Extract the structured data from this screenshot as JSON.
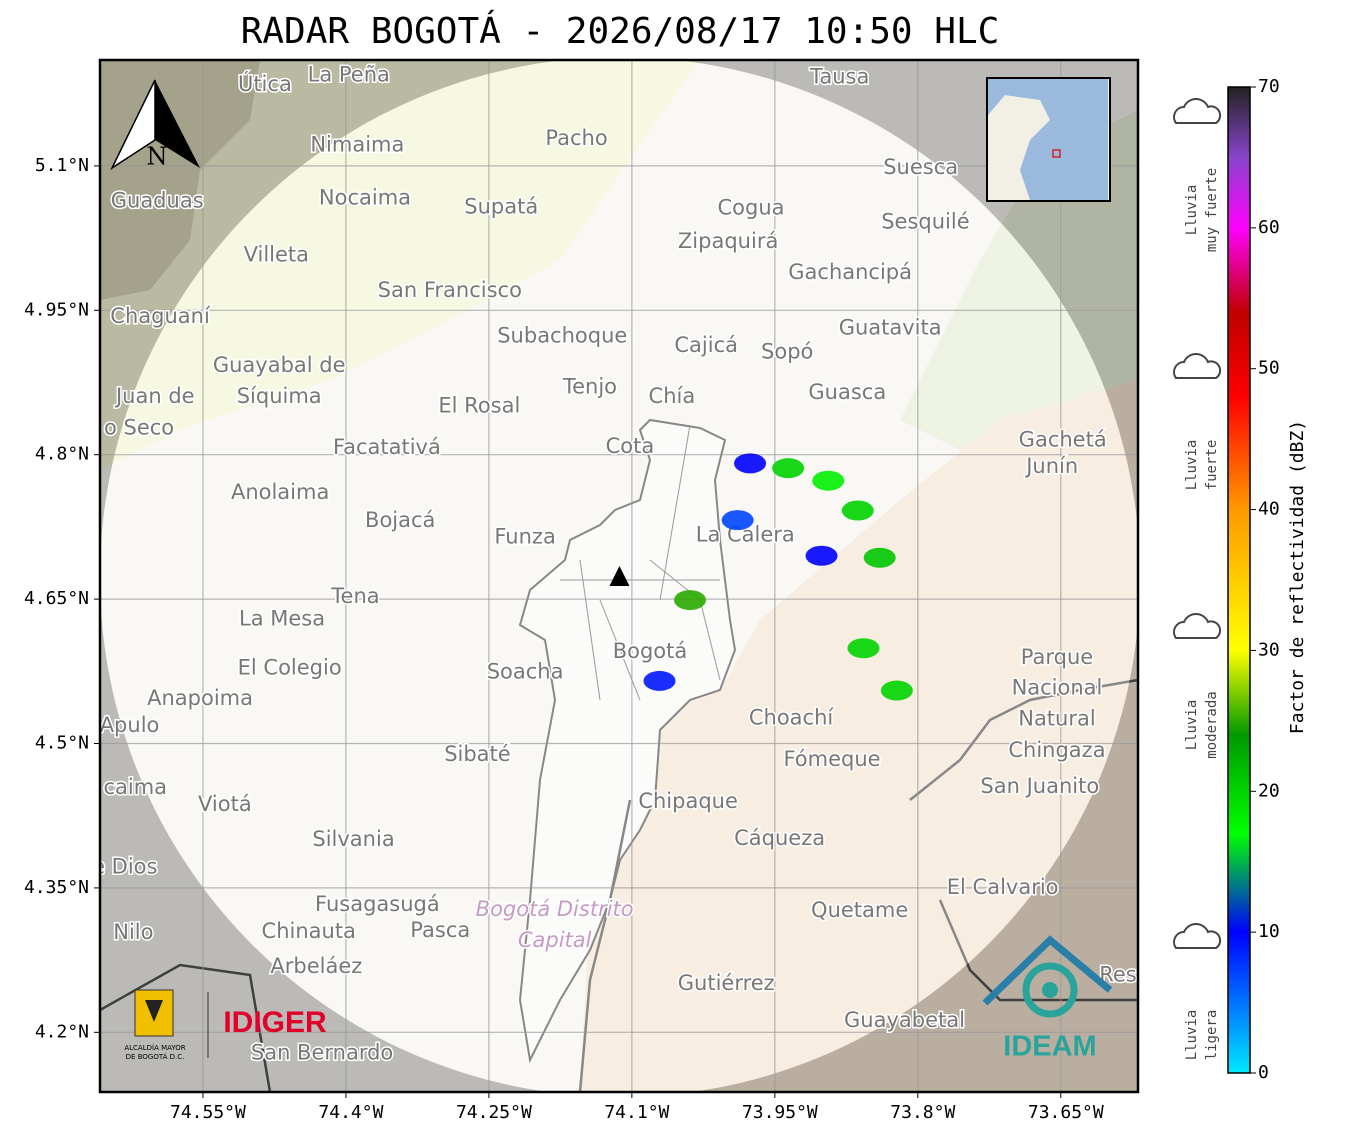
{
  "map": {
    "title": "RADAR BOGOTÁ - 2026/08/17 10:50 HLC",
    "xlim": [
      -74.658,
      -73.569
    ],
    "ylim": [
      4.138,
      5.21
    ],
    "xticks": [
      {
        "value": -74.55,
        "label": "74.55°W"
      },
      {
        "value": -74.4,
        "label": "74.4°W"
      },
      {
        "value": -74.25,
        "label": "74.25°W"
      },
      {
        "value": -74.1,
        "label": "74.1°W"
      },
      {
        "value": -73.95,
        "label": "73.95°W"
      },
      {
        "value": -73.8,
        "label": "73.8°W"
      },
      {
        "value": -73.65,
        "label": "73.65°W"
      }
    ],
    "yticks": [
      {
        "value": 5.1,
        "label": "5.1°N"
      },
      {
        "value": 4.95,
        "label": "4.95°N"
      },
      {
        "value": 4.8,
        "label": "4.8°N"
      },
      {
        "value": 4.65,
        "label": "4.65°N"
      },
      {
        "value": 4.5,
        "label": "4.5°N"
      },
      {
        "value": 4.35,
        "label": "4.35°N"
      },
      {
        "value": 4.2,
        "label": "4.2°N"
      }
    ],
    "grid": true,
    "north_label": "N",
    "radar_site": {
      "lon": -74.113,
      "lat": 4.673
    },
    "places": [
      {
        "name": "Útica",
        "lon": -74.485,
        "lat": 5.184
      },
      {
        "name": "La Peña",
        "lon": -74.397,
        "lat": 5.194
      },
      {
        "name": "Tausa",
        "lon": -73.882,
        "lat": 5.192
      },
      {
        "name": "Pacho",
        "lon": -74.158,
        "lat": 5.128
      },
      {
        "name": "Nimaima",
        "lon": -74.388,
        "lat": 5.121
      },
      {
        "name": "Guaduas",
        "lon": -74.598,
        "lat": 5.063
      },
      {
        "name": "Nocaima",
        "lon": -74.38,
        "lat": 5.066
      },
      {
        "name": "Supatá",
        "lon": -74.237,
        "lat": 5.057
      },
      {
        "name": "Cogua",
        "lon": -73.975,
        "lat": 5.056
      },
      {
        "name": "Suesca",
        "lon": -73.797,
        "lat": 5.098
      },
      {
        "name": "Zipaquirá",
        "lon": -73.999,
        "lat": 5.021
      },
      {
        "name": "Sesquilé",
        "lon": -73.792,
        "lat": 5.041
      },
      {
        "name": "Villeta",
        "lon": -74.473,
        "lat": 5.007
      },
      {
        "name": "Gachancipá",
        "lon": -73.871,
        "lat": 4.989
      },
      {
        "name": "San Francisco",
        "lon": -74.291,
        "lat": 4.97
      },
      {
        "name": "Chaguaní",
        "lon": -74.595,
        "lat": 4.943
      },
      {
        "name": "Guatavita",
        "lon": -73.829,
        "lat": 4.931
      },
      {
        "name": "Subachoque",
        "lon": -74.173,
        "lat": 4.923
      },
      {
        "name": "Cajicá",
        "lon": -74.022,
        "lat": 4.913
      },
      {
        "name": "Sopó",
        "lon": -73.937,
        "lat": 4.906
      },
      {
        "name": "Guayabal de",
        "lon": -74.47,
        "lat": 4.892
      },
      {
        "name": "Síquima",
        "lon": -74.47,
        "lat": 4.86
      },
      {
        "name": "Juan de",
        "lon": -74.6,
        "lat": 4.86
      },
      {
        "name": "o Seco",
        "lon": -74.617,
        "lat": 4.827
      },
      {
        "name": "Tenjo",
        "lon": -74.144,
        "lat": 4.87
      },
      {
        "name": "Chía",
        "lon": -74.058,
        "lat": 4.86
      },
      {
        "name": "Guasca",
        "lon": -73.874,
        "lat": 4.864
      },
      {
        "name": "El Rosal",
        "lon": -74.26,
        "lat": 4.85
      },
      {
        "name": "Facatativá",
        "lon": -74.357,
        "lat": 4.807
      },
      {
        "name": "Cota",
        "lon": -74.102,
        "lat": 4.808
      },
      {
        "name": "Gachetá",
        "lon": -73.648,
        "lat": 4.815
      },
      {
        "name": "Junín",
        "lon": -73.659,
        "lat": 4.787
      },
      {
        "name": "Anolaima",
        "lon": -74.469,
        "lat": 4.76
      },
      {
        "name": "Bojacá",
        "lon": -74.343,
        "lat": 4.731
      },
      {
        "name": "Funza",
        "lon": -74.212,
        "lat": 4.714
      },
      {
        "name": "La Calera",
        "lon": -73.981,
        "lat": 4.716
      },
      {
        "name": "Tena",
        "lon": -74.39,
        "lat": 4.652
      },
      {
        "name": "La Mesa",
        "lon": -74.467,
        "lat": 4.629
      },
      {
        "name": "Bogotá",
        "lon": -74.081,
        "lat": 4.595
      },
      {
        "name": "Soacha",
        "lon": -74.212,
        "lat": 4.574
      },
      {
        "name": "El Colegio",
        "lon": -74.459,
        "lat": 4.578
      },
      {
        "name": "Parque",
        "lon": -73.654,
        "lat": 4.589
      },
      {
        "name": "Nacional",
        "lon": -73.654,
        "lat": 4.557
      },
      {
        "name": "Natural",
        "lon": -73.654,
        "lat": 4.525
      },
      {
        "name": "Chingaza",
        "lon": -73.654,
        "lat": 4.492
      },
      {
        "name": "Anapoima",
        "lon": -74.553,
        "lat": 4.546
      },
      {
        "name": "Apulo",
        "lon": -74.627,
        "lat": 4.518
      },
      {
        "name": "Choachí",
        "lon": -73.933,
        "lat": 4.526
      },
      {
        "name": "Sibaté",
        "lon": -74.262,
        "lat": 4.488
      },
      {
        "name": "Fómeque",
        "lon": -73.89,
        "lat": 4.483
      },
      {
        "name": "San Juanito",
        "lon": -73.672,
        "lat": 4.455
      },
      {
        "name": "caima",
        "lon": -74.621,
        "lat": 4.454
      },
      {
        "name": "Viotá",
        "lon": -74.527,
        "lat": 4.436
      },
      {
        "name": "Chipaque",
        "lon": -74.041,
        "lat": 4.439
      },
      {
        "name": "Cáqueza",
        "lon": -73.945,
        "lat": 4.401
      },
      {
        "name": "Silvania",
        "lon": -74.392,
        "lat": 4.4
      },
      {
        "name": "e Dios",
        "lon": -74.632,
        "lat": 4.371
      },
      {
        "name": "El Calvario",
        "lon": -73.711,
        "lat": 4.35
      },
      {
        "name": "Fusagasugá",
        "lon": -74.367,
        "lat": 4.332
      },
      {
        "name": "Quetame",
        "lon": -73.861,
        "lat": 4.326
      },
      {
        "name": "Nilo",
        "lon": -74.623,
        "lat": 4.303
      },
      {
        "name": "Chinauta",
        "lon": -74.439,
        "lat": 4.304
      },
      {
        "name": "Pasca",
        "lon": -74.301,
        "lat": 4.305
      },
      {
        "name": "Arbeláez",
        "lon": -74.431,
        "lat": 4.268
      },
      {
        "name": "Gutiérrez",
        "lon": -74.001,
        "lat": 4.25
      },
      {
        "name": "Guayabetal",
        "lon": -73.814,
        "lat": 4.212
      },
      {
        "name": "San Bernardo",
        "lon": -74.425,
        "lat": 4.178
      },
      {
        "name": "Res",
        "lon": -73.59,
        "lat": 4.259
      }
    ],
    "district_labels": [
      {
        "name": "Bogotá Distrito",
        "lon": -74.181,
        "lat": 4.327
      },
      {
        "name": "Capital",
        "lon": -74.181,
        "lat": 4.295
      }
    ],
    "echoes": [
      {
        "lon": -73.976,
        "lat": 4.791,
        "dbz": 10
      },
      {
        "lon": -73.936,
        "lat": 4.786,
        "dbz": 20
      },
      {
        "lon": -73.894,
        "lat": 4.773,
        "dbz": 18
      },
      {
        "lon": -73.989,
        "lat": 4.732,
        "dbz": 7
      },
      {
        "lon": -73.863,
        "lat": 4.742,
        "dbz": 20
      },
      {
        "lon": -73.84,
        "lat": 4.693,
        "dbz": 21
      },
      {
        "lon": -73.901,
        "lat": 4.695,
        "dbz": 10
      },
      {
        "lon": -73.857,
        "lat": 4.599,
        "dbz": 20
      },
      {
        "lon": -74.071,
        "lat": 4.565,
        "dbz": 9
      },
      {
        "lon": -74.039,
        "lat": 4.649,
        "dbz": 25
      },
      {
        "lon": -73.822,
        "lat": 4.555,
        "dbz": 20
      }
    ],
    "colorbar": {
      "label": "Factor de reflectividad (dBZ)",
      "clim": [
        0,
        70
      ],
      "ticks": [
        0,
        10,
        20,
        30,
        40,
        50,
        60,
        70
      ],
      "colormap": [
        {
          "value": 0,
          "color": "#00e8ff"
        },
        {
          "value": 10,
          "color": "#0000ff"
        },
        {
          "value": 17,
          "color": "#00ff00"
        },
        {
          "value": 24,
          "color": "#009900"
        },
        {
          "value": 30,
          "color": "#ffff00"
        },
        {
          "value": 40,
          "color": "#ff9900"
        },
        {
          "value": 48,
          "color": "#ff0000"
        },
        {
          "value": 54,
          "color": "#c00000"
        },
        {
          "value": 60,
          "color": "#ff00ff"
        },
        {
          "value": 65,
          "color": "#8844cc"
        },
        {
          "value": 70,
          "color": "#222222"
        }
      ]
    },
    "rain_classes": [
      {
        "lines": [
          "Lluvia",
          "muy fuerte"
        ]
      },
      {
        "lines": [
          "Lluvia",
          "fuerte"
        ]
      },
      {
        "lines": [
          "Lluvia",
          "moderada"
        ]
      },
      {
        "lines": [
          "Lluvia",
          "ligera"
        ]
      }
    ],
    "logos": {
      "alcaldia": [
        "ALCALDÍA MAYOR",
        "DE BOGOTÁ D.C."
      ],
      "idiger": "IDIGER",
      "ideam": "IDEAM"
    }
  }
}
